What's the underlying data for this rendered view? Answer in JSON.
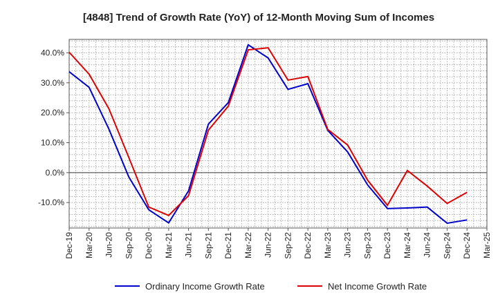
{
  "chart_data": {
    "type": "line",
    "title": "[4848]  Trend of Growth Rate (YoY) of 12-Month Moving Sum of Incomes",
    "xlabel": "",
    "ylabel": "",
    "x": [
      "Dec-19",
      "Mar-20",
      "Jun-20",
      "Sep-20",
      "Dec-20",
      "Mar-21",
      "Jun-21",
      "Sep-21",
      "Dec-21",
      "Mar-22",
      "Jun-22",
      "Sep-22",
      "Dec-22",
      "Mar-23",
      "Jun-23",
      "Sep-23",
      "Dec-23",
      "Mar-24",
      "Jun-24",
      "Sep-24",
      "Dec-24",
      "Mar-25"
    ],
    "ylim": [
      -18.5,
      44.5
    ],
    "yticks": [
      40,
      30,
      20,
      10,
      0,
      -10
    ],
    "ytick_labels": [
      "40.0%",
      "30.0%",
      "20.0%",
      "10.0%",
      "0.0%",
      "-10.0%"
    ],
    "grid": true,
    "legend_position": "bottom",
    "series": [
      {
        "name": "Ordinary Income Growth Rate",
        "color": "#0000cc",
        "values": [
          33.7,
          28.5,
          14.5,
          -1.5,
          -12.4,
          -16.8,
          -6.1,
          16.2,
          23.4,
          42.7,
          38.3,
          27.8,
          29.7,
          14.1,
          6.9,
          -4.1,
          -12.0,
          -11.8,
          -11.5,
          -16.9,
          -15.8,
          null
        ]
      },
      {
        "name": "Net Income Growth Rate",
        "color": "#dd0000",
        "values": [
          40.2,
          32.9,
          21.3,
          5.0,
          -11.5,
          -14.3,
          -7.7,
          14.2,
          22.2,
          41.0,
          41.7,
          30.9,
          32.1,
          14.4,
          9.2,
          -2.5,
          -10.9,
          0.7,
          -4.5,
          -10.3,
          -6.6,
          null
        ]
      }
    ]
  }
}
